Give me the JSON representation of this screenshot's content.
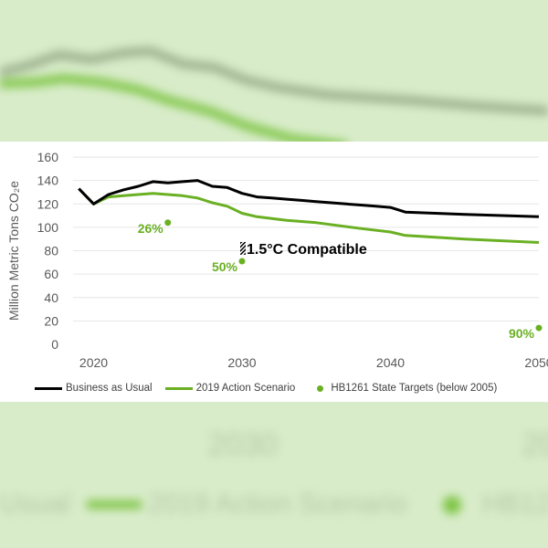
{
  "colors": {
    "business": "#000000",
    "action": "#6ab023",
    "targets": "#6ab023",
    "background": "#d8ecc9",
    "bg_lines": "#9fb58f"
  },
  "background_text": {
    "year_2030": "2030",
    "year_2050": "20",
    "legend_business": "Usual",
    "legend_action": "2019 Action Scenario",
    "legend_targets": "HB12"
  },
  "chart_data": {
    "type": "line",
    "title": "",
    "ylabel": "Million Metric Tons CO₂e",
    "xlabel": "",
    "xlim": [
      2018,
      2050
    ],
    "ylim": [
      0,
      160
    ],
    "xticks": [
      2020,
      2030,
      2040,
      2050
    ],
    "yticks": [
      0,
      20,
      40,
      60,
      80,
      100,
      120,
      140,
      160
    ],
    "grid": "horizontal",
    "series": [
      {
        "name": "Business as Usual",
        "color": "#000000",
        "x": [
          2019,
          2020,
          2021,
          2022,
          2023,
          2024,
          2025,
          2026,
          2027,
          2028,
          2029,
          2030,
          2031,
          2032,
          2033,
          2034,
          2035,
          2036,
          2037,
          2038,
          2039,
          2040,
          2041,
          2045,
          2050
        ],
        "y": [
          133,
          120,
          128,
          132,
          135,
          139,
          138,
          139,
          140,
          135,
          134,
          129,
          126,
          125,
          124,
          123,
          122,
          121,
          120,
          119,
          118,
          117,
          113,
          111,
          109
        ]
      },
      {
        "name": "2019 Action Scenario",
        "color": "#6ab023",
        "x": [
          2019,
          2020,
          2021,
          2022,
          2023,
          2024,
          2025,
          2026,
          2027,
          2028,
          2029,
          2030,
          2031,
          2033,
          2035,
          2038,
          2040,
          2041,
          2045,
          2050
        ],
        "y": [
          133,
          120,
          126,
          127,
          128,
          129,
          128,
          127,
          125,
          121,
          118,
          112,
          109,
          106,
          104,
          99,
          96,
          93,
          90,
          87
        ]
      }
    ],
    "targets": {
      "name": "HB1261 State Targets (below 2005)",
      "color": "#6ab023",
      "points": [
        {
          "x": 2025,
          "y": 104,
          "label": "26%"
        },
        {
          "x": 2030,
          "y": 71,
          "label": "50%"
        },
        {
          "x": 2050,
          "y": 14,
          "label": "90%"
        }
      ]
    },
    "annotation": {
      "x": 2030,
      "y": 75,
      "text": "1.5°C Compatible"
    }
  },
  "legend": {
    "business": "Business as Usual",
    "action": "2019 Action Scenario",
    "targets": "HB1261 State Targets (below 2005)"
  }
}
